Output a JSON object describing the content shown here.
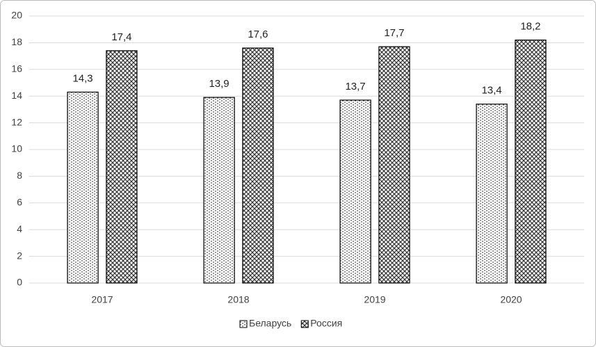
{
  "chart_data": {
    "type": "bar",
    "categories": [
      "2017",
      "2018",
      "2019",
      "2020"
    ],
    "series": [
      {
        "name": "Беларусь",
        "pattern": "dots",
        "color": "#000000",
        "values": [
          14.3,
          13.9,
          13.7,
          13.4
        ],
        "value_labels": [
          "14,3",
          "13,9",
          "13,7",
          "13,4"
        ]
      },
      {
        "name": "Россия",
        "pattern": "crosshatch",
        "color": "#000000",
        "values": [
          17.4,
          17.6,
          17.7,
          18.2
        ],
        "value_labels": [
          "17,4",
          "17,6",
          "17,7",
          "18,2"
        ]
      }
    ],
    "ylim": [
      0,
      20
    ],
    "yticks": [
      0,
      2,
      4,
      6,
      8,
      10,
      12,
      14,
      16,
      18,
      20
    ],
    "grid": true,
    "legend": "bottom"
  }
}
